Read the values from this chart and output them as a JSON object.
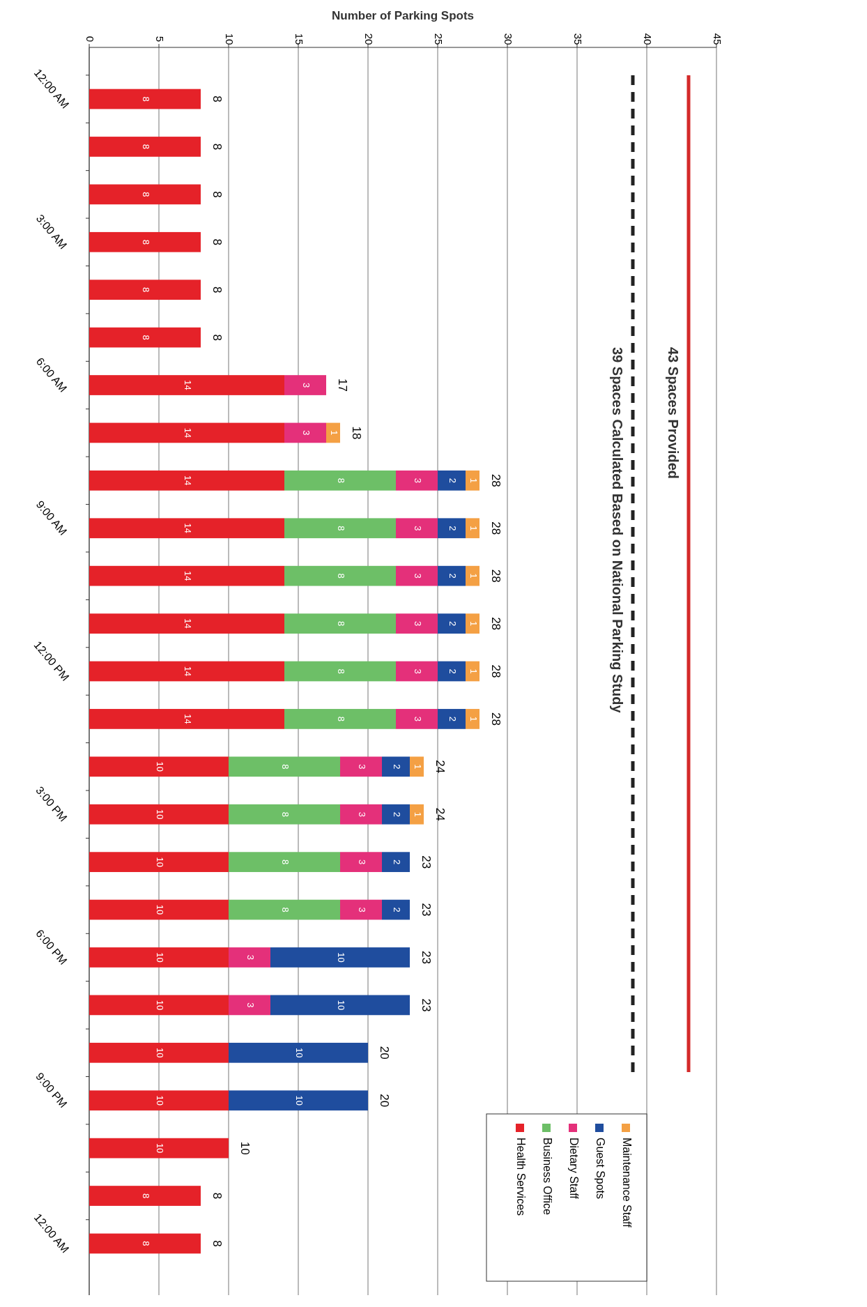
{
  "chart_data": {
    "type": "bar",
    "orientation": "horizontal",
    "stacked": true,
    "xlabel": "Number of Parking Spots",
    "categories": [
      "12:00 AM",
      null,
      null,
      "3:00 AM",
      null,
      null,
      "6:00 AM",
      null,
      null,
      "9:00 AM",
      null,
      null,
      "12:00 PM",
      null,
      null,
      "3:00 PM",
      null,
      null,
      "6:00 PM",
      null,
      null,
      "9:00 PM",
      null,
      null,
      "12:00 AM"
    ],
    "series": [
      {
        "name": "Health Services",
        "color": "#e52229",
        "values": [
          8,
          8,
          8,
          8,
          8,
          8,
          14,
          14,
          14,
          14,
          14,
          14,
          14,
          14,
          10,
          10,
          10,
          10,
          10,
          10,
          10,
          10,
          10,
          8,
          8
        ]
      },
      {
        "name": "Business Office",
        "color": "#6dbf67",
        "values": [
          null,
          null,
          null,
          null,
          null,
          null,
          null,
          null,
          8,
          8,
          8,
          8,
          8,
          8,
          8,
          8,
          8,
          8,
          null,
          null,
          null,
          null,
          null,
          null,
          null
        ]
      },
      {
        "name": "Dietary Staff",
        "color": "#e4307a",
        "values": [
          null,
          null,
          null,
          null,
          null,
          null,
          3,
          3,
          3,
          3,
          3,
          3,
          3,
          3,
          3,
          3,
          3,
          3,
          3,
          3,
          null,
          null,
          null,
          null,
          null
        ]
      },
      {
        "name": "Guest Spots",
        "color": "#1f4d9e",
        "values": [
          null,
          null,
          null,
          null,
          null,
          null,
          null,
          null,
          2,
          2,
          2,
          2,
          2,
          2,
          2,
          2,
          2,
          2,
          10,
          10,
          10,
          10,
          null,
          null,
          null
        ]
      },
      {
        "name": "Maintenance Staff",
        "color": "#f4a044",
        "values": [
          null,
          null,
          null,
          null,
          null,
          null,
          null,
          1,
          1,
          1,
          1,
          1,
          1,
          1,
          1,
          1,
          null,
          null,
          null,
          null,
          null,
          null,
          null,
          null,
          null
        ]
      }
    ],
    "totals": [
      "8",
      "8",
      "8",
      "8",
      "8",
      "8",
      "17",
      "18",
      "28",
      "28",
      "28",
      "28",
      "28",
      "28",
      "24",
      "24",
      "23",
      "23",
      "23",
      "23",
      "20",
      "20",
      "10",
      "8",
      "8"
    ],
    "data_labels": true,
    "xlim": [
      0,
      45
    ],
    "xticks": [
      0,
      5,
      10,
      15,
      20,
      25,
      30,
      35,
      40,
      45
    ],
    "grid": "x",
    "legend": "bottom right",
    "ref_lines": [
      {
        "axis": "x",
        "value": 43,
        "label": "43 Spaces Provided",
        "color": "#d42a2a",
        "line_style": "solid"
      },
      {
        "axis": "x",
        "value": 39,
        "label": "39 Spaces Calculated Based on National Parking Study",
        "color": "#222222",
        "line_style": "dashed"
      }
    ]
  }
}
